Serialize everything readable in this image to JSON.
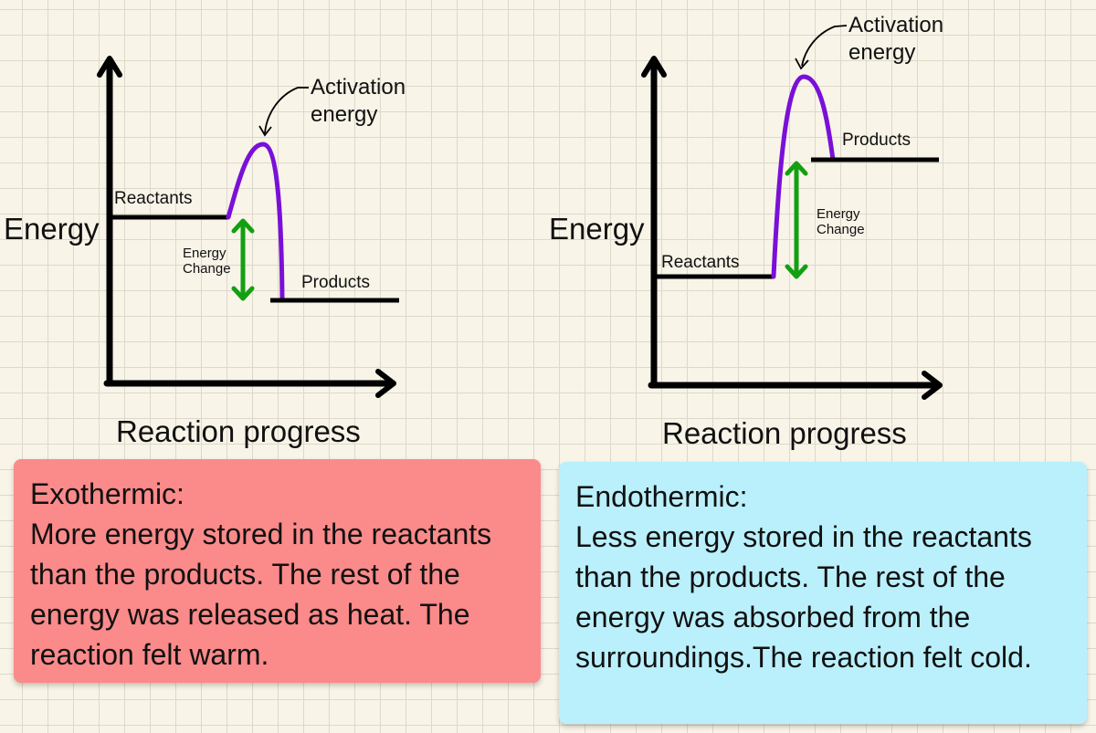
{
  "colors": {
    "background": "#f8f4e8",
    "grid": "#dcd8ca",
    "axis": "#000000",
    "curve": "#7a10d8",
    "energy_arrow": "#12a012",
    "exo_card": "#fb8a8a",
    "endo_card": "#baf0fc"
  },
  "exothermic": {
    "y_axis_label": "Energy",
    "x_axis_label": "Reaction progress",
    "reactants_label": "Reactants",
    "products_label": "Products",
    "activation_label_line1": "Activation",
    "activation_label_line2": "energy",
    "energy_change_line1": "Energy",
    "energy_change_line2": "Change",
    "card_title": "Exothermic:",
    "card_body": "More energy stored in the reactants than the products. The rest of the energy was released as heat. The reaction felt warm."
  },
  "endothermic": {
    "y_axis_label": "Energy",
    "x_axis_label": "Reaction progress",
    "reactants_label": "Reactants",
    "products_label": "Products",
    "activation_label_line1": "Activation",
    "activation_label_line2": "energy",
    "energy_change_line1": "Energy",
    "energy_change_line2": "Change",
    "card_title": "Endothermic:",
    "card_body": "Less energy stored in the reactants than the products. The rest of the energy was absorbed from the surroundings.The reaction felt cold."
  }
}
